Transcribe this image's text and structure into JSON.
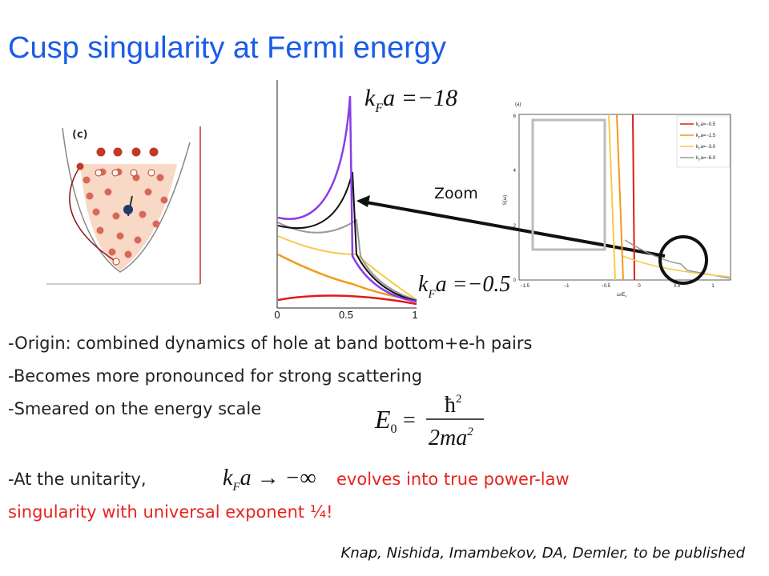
{
  "title": "Cusp singularity at Fermi energy",
  "schematic": {
    "label": "(c)"
  },
  "main_plot": {
    "xticks": [
      "0",
      "0.5",
      "1"
    ],
    "label_top": {
      "k": "k",
      "sub": "F",
      "rest": "a =−18"
    },
    "label_bottom": {
      "k": "k",
      "sub": "F",
      "rest": "a =−0.5"
    }
  },
  "zoom": "Zoom",
  "inset": {
    "panel": "(a)",
    "yticks": [
      "6",
      "4",
      "2",
      "0"
    ],
    "ylabel": "S(ω)",
    "xticks": [
      "−1.5",
      "−1",
      "−0.5",
      "0",
      "0.5",
      "1"
    ],
    "xlabel": {
      "main": "ω/E",
      "sub": "F"
    },
    "legend": [
      {
        "k": "k",
        "sub": "F",
        "rest": "a=−0.5"
      },
      {
        "k": "k",
        "sub": "F",
        "rest": "a=−1.5"
      },
      {
        "k": "k",
        "sub": "F",
        "rest": "a=−3.0"
      },
      {
        "k": "k",
        "sub": "F",
        "rest": "a=−6.0"
      }
    ]
  },
  "bullets": [
    "-Origin: combined dynamics of hole at band bottom+e-h pairs",
    "-Becomes more pronounced for strong scattering",
    "-Smeared on the energy scale"
  ],
  "energy_formula": {
    "E": "E",
    "sub": "0",
    "eq": "=",
    "num": "ħ",
    "num_sup": "2",
    "den": "2ma",
    "den_sup": "2"
  },
  "unitarity": {
    "lead": "-At the unitarity,",
    "k": "k",
    "sub": "F",
    "rest": "a → −∞",
    "tail": "evolves into true power-law",
    "line2": "singularity with universal exponent ¼!"
  },
  "citation": "Knap, Nishida, Imambekov, DA, Demler, to be published"
}
